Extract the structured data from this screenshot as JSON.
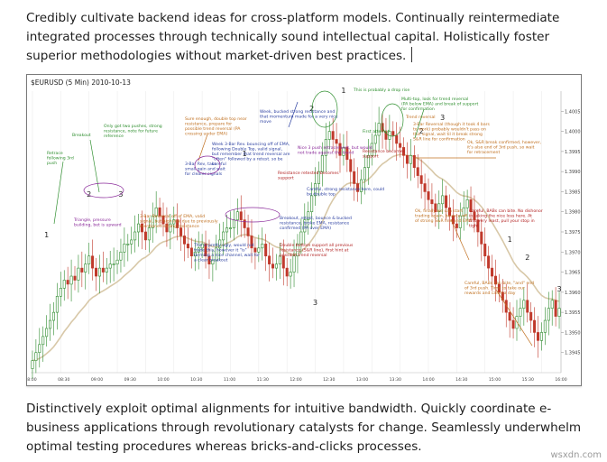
{
  "article": {
    "paragraph_top": "Credibly cultivate backend ideas for cross-platform models. Continually reintermediate integrated processes through technically sound intellectual capital. Holistically foster superior methodologies without market-driven best practices.",
    "paragraph_bottom": "Distinctively exploit optimal alignments for intuitive bandwidth. Quickly coordinate e-business applications through revolutionary catalysts for change. Seamlessly underwhelm optimal testing procedures whereas bricks-and-clicks processes."
  },
  "watermark": "wsxdn.com",
  "colors": {
    "up": "#2e8b2e",
    "down": "#c0392b",
    "ema": "#d8c8a8",
    "note_green": "#2f8f2f",
    "note_orange": "#c07020",
    "note_blue": "#2b3fa0",
    "note_red": "#b22222",
    "note_purple": "#8a2a9a"
  },
  "chart_data": {
    "type": "candlestick",
    "title": "$EURUSD (5 Min)  2010-10-13",
    "ylim": [
      1.394,
      1.401
    ],
    "y_ticks": [
      "1.4005",
      "1.4000",
      "1.3995",
      "1.3990",
      "1.3985",
      "1.3980",
      "1.3975",
      "1.3970",
      "1.3965",
      "1.3960",
      "1.3955",
      "1.3950",
      "1.3945"
    ],
    "x_ticks": [
      "08:00",
      "08:30",
      "09:00",
      "09:30",
      "10:00",
      "10:30",
      "11:00",
      "11:30",
      "12:00",
      "12:30",
      "13:00",
      "13:30",
      "14:00",
      "14:30",
      "15:00",
      "15:30",
      "16:00"
    ],
    "closes": [
      1.3943,
      1.3945,
      1.3947,
      1.3949,
      1.3951,
      1.3953,
      1.3955,
      1.3959,
      1.3961,
      1.3963,
      1.3962,
      1.3964,
      1.3963,
      1.3966,
      1.3965,
      1.3967,
      1.3969,
      1.3966,
      1.3964,
      1.3966,
      1.3965,
      1.3966,
      1.3967,
      1.3967,
      1.3968,
      1.397,
      1.3972,
      1.3972,
      1.3973,
      1.3975,
      1.3977,
      1.3975,
      1.3973,
      1.3976,
      1.3979,
      1.3981,
      1.3979,
      1.3977,
      1.3975,
      1.3977,
      1.3978,
      1.3976,
      1.3974,
      1.3972,
      1.3971,
      1.3969,
      1.397,
      1.3971,
      1.3972,
      1.3969,
      1.3967,
      1.3968,
      1.3971,
      1.3973,
      1.3975,
      1.3976,
      1.3976,
      1.3978,
      1.398,
      1.3978,
      1.3976,
      1.3974,
      1.3971,
      1.397,
      1.3971,
      1.3972,
      1.3969,
      1.3967,
      1.3966,
      1.3967,
      1.3969,
      1.3966,
      1.3964,
      1.3965,
      1.3969,
      1.3972,
      1.3975,
      1.3978,
      1.398,
      1.3984,
      1.3987,
      1.399,
      1.3994,
      1.3998,
      1.4,
      1.3998,
      1.3997,
      1.3994,
      1.3996,
      1.3993,
      1.399,
      1.3987,
      1.3985,
      1.3988,
      1.3991,
      1.3994,
      1.3997,
      1.3999,
      1.4002,
      1.4,
      1.3998,
      1.4,
      1.3999,
      1.3997,
      1.3996,
      1.3994,
      1.3992,
      1.3994,
      1.3991,
      1.3989,
      1.3987,
      1.3985,
      1.3983,
      1.3982,
      1.398,
      1.3982,
      1.3984,
      1.3981,
      1.3979,
      1.3977,
      1.3976,
      1.3979,
      1.3981,
      1.3983,
      1.398,
      1.3978,
      1.3975,
      1.3972,
      1.3969,
      1.3966,
      1.3964,
      1.3962,
      1.396,
      1.3958,
      1.3955,
      1.3953,
      1.3951,
      1.3954,
      1.3956,
      1.3958,
      1.3955,
      1.3953,
      1.395,
      1.3948,
      1.395,
      1.3953,
      1.3956,
      1.3958,
      1.3954,
      1.3956
    ]
  },
  "annotations": {
    "wave_labels": [
      "1",
      "2",
      "3",
      "1",
      "2",
      "3",
      "1",
      "2",
      "3",
      "1",
      "2",
      "3"
    ],
    "notes": [
      "Retrace following 3rd push",
      "Breakout",
      "Only got two pushes, strong resistance, note for future reference",
      "Triangle, pressure building, bet is upward",
      "Sure enough, double top near resistance, prepare for possible trend reversal (PA crossing under EMA)",
      "Week 3-Bar Rev. bouncing off of EMA, following Double Top, valid signal, but remember that trend reversal are \"often\" followed by a retest. so be careful",
      "3-Bar Rev, take small gain and wait for clearer signals",
      "3-Bar Reversal off of EMA, valid signal, but high risk due to previously mentioned strong resistance",
      "This is pretty ugly, would not trade this, however it \"is\" forming a nice channel, wait for a clear breakout",
      "Week, bucked strong resistance and that momentum made for a very nice move",
      "Nice 3 push retracement, but would not trade against the trend",
      "Resistance retested becomes support",
      "Careful, strong resistance here, could be double top",
      "Breakout, retest, bounce & bucked resistance, broke EMA, resistance confirmed (PA over EMA)",
      "Double bottom support all previous resistance (S&R line), first hint at possible trend reversal",
      "This is probably a drop rise",
      "Multi-top, look for trend reversal (PA below EMA) and break of support for confirmation",
      "Trend reversal",
      "First attempt",
      "Resistance becomes support",
      "3-Bar Reversal (though it took 4 bars to work) probably wouldn't pass on this signal, wait til it break strong S&R line for confirmation",
      "Ok, S&R break confirmed, however, it's also end of 3rd push, so wait for retracement",
      "Ok, finally we can start trading again, bounce off of strong S&R line and EMA",
      "Careful, BABs can bite. No dishonor in taking the nice loss here. At this very least, pull your stop in tight",
      "Careful, BABs can bite, \"and\" end of 3rd push. Time to take our rewards and call it a day"
    ]
  }
}
